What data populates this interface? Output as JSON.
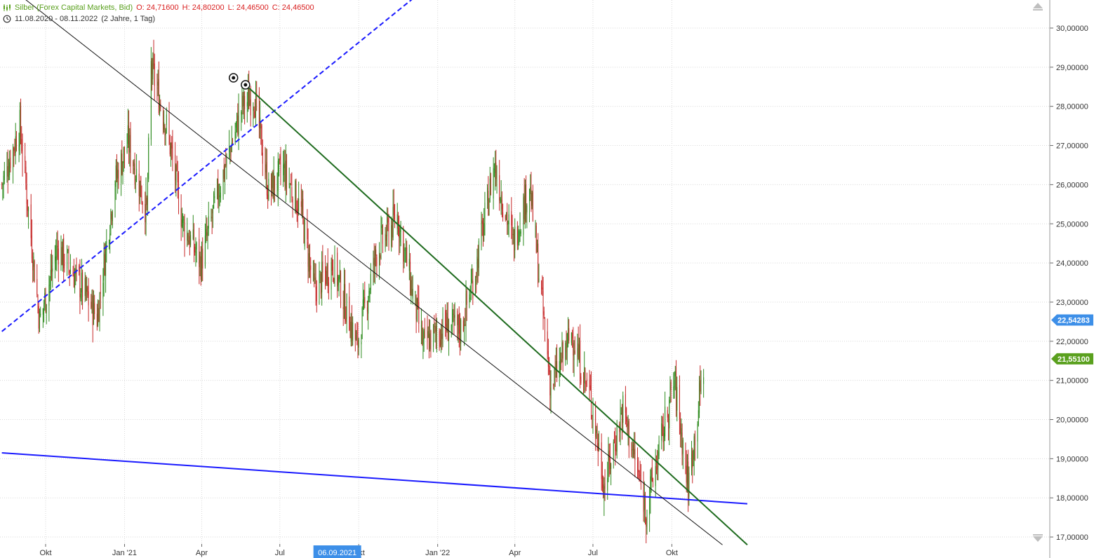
{
  "instrument": {
    "name": "Silber (Forex Capital Markets, Bid)",
    "open": "O: 24,71600",
    "high": "H: 24,80200",
    "low": "L: 24,46500",
    "close": "C: 24,46500",
    "range": "11.08.2020 - 08.11.2022",
    "period": "(2 Jahre, 1 Tag)"
  },
  "colors": {
    "up": "#2e8b1e",
    "down": "#c62828",
    "grid": "#d9d9d9",
    "support": "#1a1aff",
    "trend_green": "#1e6b1e",
    "trend_black": "#111111",
    "price_badge_blue": "#3d8fe8",
    "price_badge_green": "#5aa01e",
    "crosshair_date_bg": "#3d8fe8"
  },
  "chart_data": {
    "type": "candlestick",
    "y_axis": {
      "ticks": [
        "30,00000",
        "29,00000",
        "28,00000",
        "27,00000",
        "26,00000",
        "25,00000",
        "24,00000",
        "23,00000",
        "22,00000",
        "21,00000",
        "20,00000",
        "19,00000",
        "18,00000",
        "17,00000"
      ],
      "range": [
        16.8,
        30.4
      ]
    },
    "x_axis": {
      "ticks": [
        "Okt",
        "Jan '21",
        "Apr",
        "Jul",
        "Okt",
        "Jan '22",
        "Apr",
        "Jul",
        "Okt"
      ],
      "crosshair_date": "06.09.2021"
    },
    "markers": {
      "current_price": "22,54283",
      "last_close": "21,55100"
    },
    "approx_close_path": [
      [
        "2020-08-11",
        26.0
      ],
      [
        "2020-09-01",
        27.5
      ],
      [
        "2020-09-24",
        22.5
      ],
      [
        "2020-10-15",
        24.4
      ],
      [
        "2020-11-09",
        23.5
      ],
      [
        "2020-11-30",
        22.6
      ],
      [
        "2020-12-20",
        26.0
      ],
      [
        "2021-01-05",
        27.1
      ],
      [
        "2021-01-27",
        25.3
      ],
      [
        "2021-02-01",
        29.0
      ],
      [
        "2021-02-20",
        27.4
      ],
      [
        "2021-03-10",
        25.0
      ],
      [
        "2021-03-31",
        24.0
      ],
      [
        "2021-04-20",
        25.8
      ],
      [
        "2021-05-18",
        28.0
      ],
      [
        "2021-06-01",
        28.3
      ],
      [
        "2021-06-18",
        25.8
      ],
      [
        "2021-07-05",
        26.4
      ],
      [
        "2021-07-26",
        25.3
      ],
      [
        "2021-08-10",
        23.3
      ],
      [
        "2021-09-01",
        24.0
      ],
      [
        "2021-09-29",
        21.9
      ],
      [
        "2021-10-22",
        24.3
      ],
      [
        "2021-11-15",
        25.2
      ],
      [
        "2021-12-15",
        21.9
      ],
      [
        "2022-01-10",
        22.4
      ],
      [
        "2022-01-28",
        22.3
      ],
      [
        "2022-02-15",
        23.9
      ],
      [
        "2022-03-08",
        26.5
      ],
      [
        "2022-03-30",
        24.5
      ],
      [
        "2022-04-18",
        26.0
      ],
      [
        "2022-05-13",
        20.8
      ],
      [
        "2022-06-06",
        22.2
      ],
      [
        "2022-06-30",
        20.4
      ],
      [
        "2022-07-14",
        18.3
      ],
      [
        "2022-08-05",
        20.3
      ],
      [
        "2022-09-01",
        17.7
      ],
      [
        "2022-09-19",
        19.5
      ],
      [
        "2022-10-04",
        21.0
      ],
      [
        "2022-10-20",
        18.3
      ],
      [
        "2022-11-08",
        21.55
      ]
    ],
    "trendlines": [
      {
        "style": "solid",
        "color": "support",
        "from": [
          "2020-08-11",
          19.15
        ],
        "to": [
          "2022-12-28",
          17.85
        ]
      },
      {
        "style": "dashed",
        "color": "support",
        "from": [
          "2020-08-11",
          22.25
        ],
        "to": [
          "2021-12-03",
          30.75
        ]
      },
      {
        "style": "solid",
        "color": "trend_black",
        "from": [
          "2020-08-11",
          31.2
        ],
        "to": [
          "2022-11-29",
          16.8
        ]
      },
      {
        "style": "solid",
        "color": "trend_green",
        "from": [
          "2021-05-22",
          28.55
        ],
        "to": [
          "2022-12-28",
          16.8
        ]
      }
    ]
  }
}
